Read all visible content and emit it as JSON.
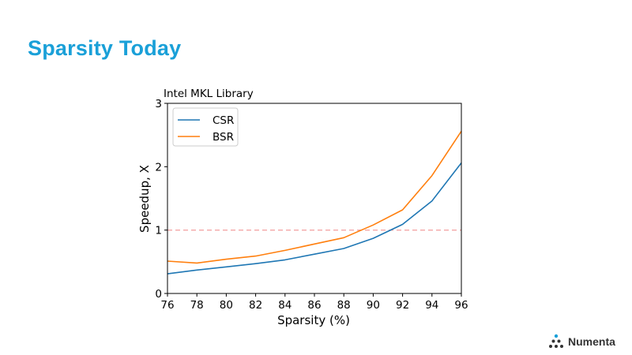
{
  "slide": {
    "title": "Sparsity Today",
    "logo_text": "Numenta"
  },
  "colors": {
    "title": "#1aa0d8",
    "csr": "#1f77b4",
    "bsr": "#ff7f0e",
    "reference_line": "#f4a6a6"
  },
  "chart_data": {
    "type": "line",
    "title": "Intel MKL Library",
    "xlabel": "Sparsity (%)",
    "ylabel": "Speedup, X",
    "xlim": [
      76,
      96
    ],
    "ylim": [
      0,
      3
    ],
    "xticks": [
      76,
      78,
      80,
      82,
      84,
      86,
      88,
      90,
      92,
      94,
      96
    ],
    "yticks": [
      0,
      1,
      2,
      3
    ],
    "x": [
      76,
      78,
      80,
      82,
      84,
      86,
      88,
      90,
      92,
      94,
      96
    ],
    "series": [
      {
        "name": "CSR",
        "color": "#1f77b4",
        "values": [
          0.31,
          0.37,
          0.42,
          0.47,
          0.53,
          0.62,
          0.71,
          0.87,
          1.09,
          1.46,
          2.06
        ]
      },
      {
        "name": "BSR",
        "color": "#ff7f0e",
        "values": [
          0.51,
          0.48,
          0.54,
          0.59,
          0.68,
          0.78,
          0.88,
          1.08,
          1.32,
          1.86,
          2.56
        ]
      }
    ],
    "reference_line": {
      "y": 1,
      "style": "dashed",
      "color": "#f4a6a6"
    },
    "legend": {
      "position": "top-left"
    },
    "grid": false
  }
}
